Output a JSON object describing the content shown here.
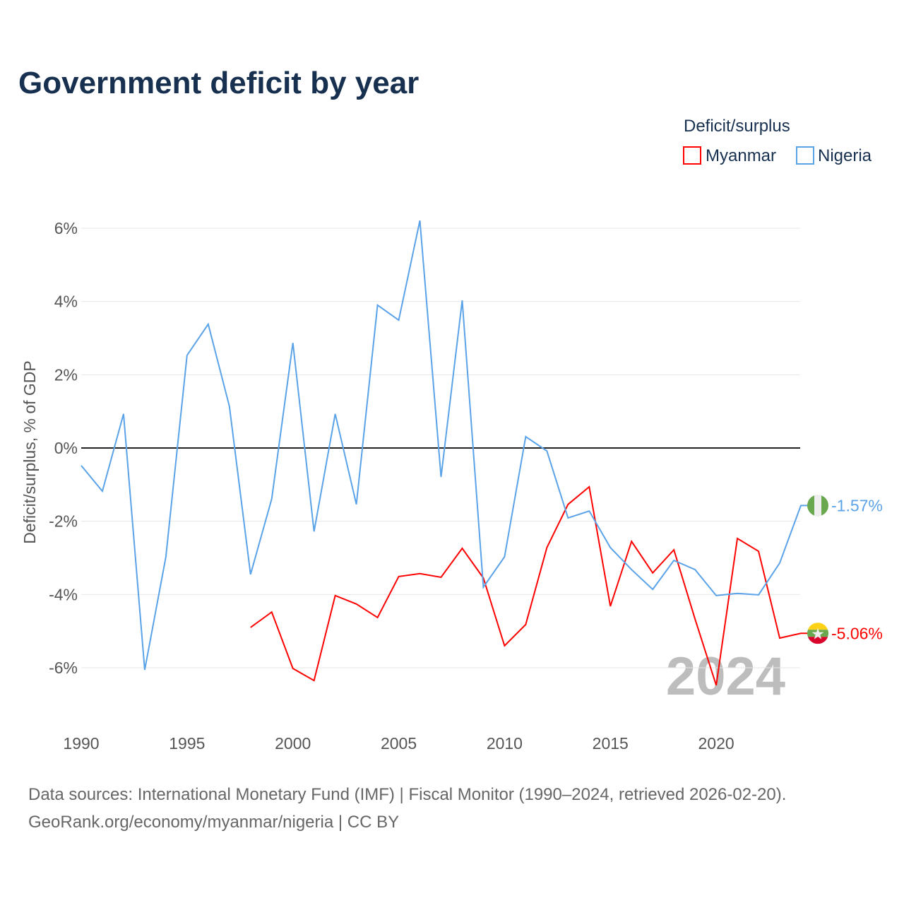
{
  "chart_data": {
    "type": "line",
    "title": "Government deficit by year",
    "ylabel": "Deficit/surplus, % of GDP",
    "xlabel": "",
    "xlim": [
      1990,
      2024
    ],
    "ylim": [
      -7.3,
      6.5
    ],
    "xticks": [
      1990,
      1995,
      2000,
      2005,
      2010,
      2015,
      2020
    ],
    "yticks": [
      6,
      4,
      2,
      0,
      -2,
      -4,
      -6
    ],
    "ytick_labels": [
      "6%",
      "4%",
      "2%",
      "0%",
      "-2%",
      "-4%",
      "-6%"
    ],
    "grid": true,
    "legend_title": "Deficit/surplus",
    "legend_position": "top-right",
    "year_watermark": "2024",
    "series": [
      {
        "name": "Myanmar",
        "color": "#ff0000",
        "end_label": "-5.06%",
        "flag": "myanmar-flag",
        "x": [
          1998,
          1999,
          2000,
          2001,
          2002,
          2003,
          2004,
          2005,
          2006,
          2007,
          2008,
          2009,
          2010,
          2011,
          2012,
          2013,
          2014,
          2015,
          2016,
          2017,
          2018,
          2019,
          2020,
          2021,
          2022,
          2023,
          2024
        ],
        "values": [
          -4.9,
          -4.48,
          -6.02,
          -6.35,
          -4.03,
          -4.26,
          -4.63,
          -3.51,
          -3.43,
          -3.53,
          -2.74,
          -3.55,
          -5.4,
          -4.82,
          -2.72,
          -1.54,
          -1.06,
          -4.32,
          -2.55,
          -3.41,
          -2.78,
          -4.67,
          -6.48,
          -2.47,
          -2.82,
          -5.19,
          -5.06
        ]
      },
      {
        "name": "Nigeria",
        "color": "#5ba3e8",
        "end_label": "-1.57%",
        "flag": "nigeria-flag",
        "x": [
          1990,
          1991,
          1992,
          1993,
          1994,
          1995,
          1996,
          1997,
          1998,
          1999,
          2000,
          2001,
          2002,
          2003,
          2004,
          2005,
          2006,
          2007,
          2008,
          2009,
          2010,
          2011,
          2012,
          2013,
          2014,
          2015,
          2016,
          2017,
          2018,
          2019,
          2020,
          2021,
          2022,
          2023,
          2024
        ],
        "values": [
          -0.48,
          -1.18,
          0.93,
          -6.06,
          -2.97,
          2.53,
          3.38,
          1.14,
          -3.45,
          -1.39,
          2.87,
          -2.28,
          0.93,
          -1.54,
          3.9,
          3.49,
          6.21,
          -0.79,
          4.03,
          -3.8,
          -2.97,
          0.31,
          -0.08,
          -1.91,
          -1.72,
          -2.72,
          -3.32,
          -3.86,
          -3.07,
          -3.32,
          -4.03,
          -3.97,
          -4.01,
          -3.14,
          -1.57
        ]
      }
    ]
  },
  "footer": {
    "line1": "Data sources: International Monetary Fund (IMF) | Fiscal Monitor (1990–2024, retrieved 2026-02-20).",
    "line2": "GeoRank.org/economy/myanmar/nigeria | CC BY"
  }
}
